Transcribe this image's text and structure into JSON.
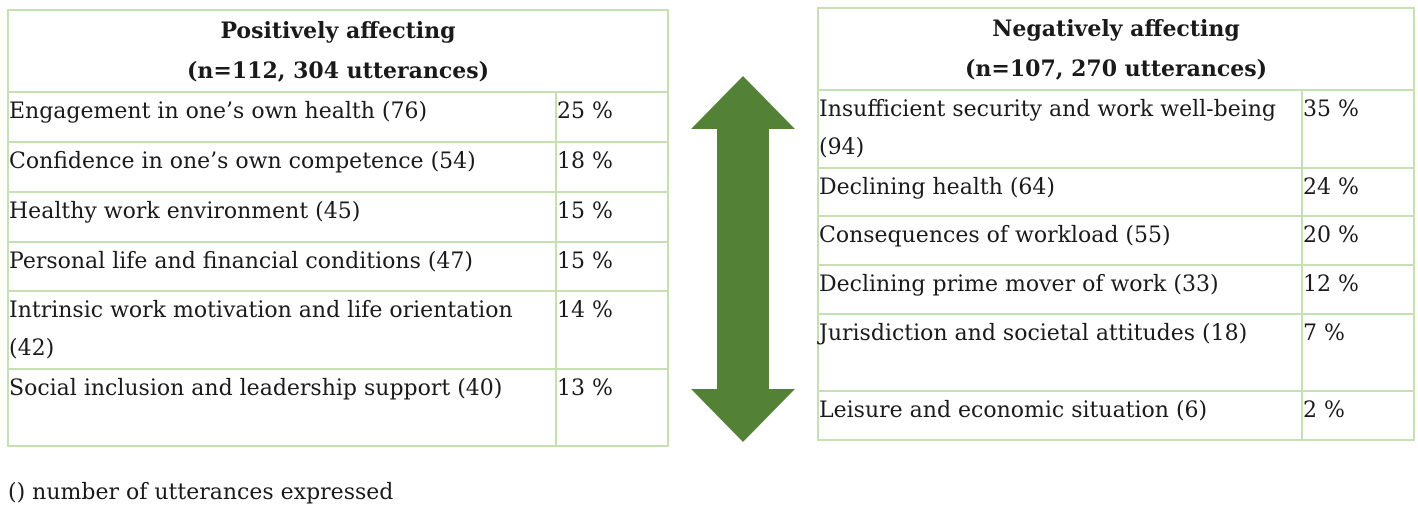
{
  "positive": {
    "title": "Positively affecting",
    "subtitle": "(n=112, 304 utterances)",
    "rows": [
      {
        "label": "Engagement in one’s own health (76)",
        "percent": "25 %"
      },
      {
        "label": "Confidence in one’s own competence (54)",
        "percent": "18 %"
      },
      {
        "label": "Healthy work environment (45)",
        "percent": "15 %"
      },
      {
        "label": "Personal life and financial conditions (47)",
        "percent": "15 %"
      },
      {
        "label": "Intrinsic work motivation and life orientation (42)",
        "percent": "14 %"
      },
      {
        "label": "Social inclusion and leadership support (40)",
        "percent": "13 %"
      }
    ]
  },
  "negative": {
    "title": "Negatively affecting",
    "subtitle": "(n=107, 270 utterances)",
    "rows": [
      {
        "label": "Insufficient security and work well-being (94)",
        "percent": "35 %"
      },
      {
        "label": "Declining health (64)",
        "percent": "24 %"
      },
      {
        "label": "Consequences of workload (55)",
        "percent": "20 %"
      },
      {
        "label": "Declining prime mover of work (33)",
        "percent": "12 %"
      },
      {
        "label": "Jurisdiction and societal attitudes (18)",
        "percent": "7 %"
      },
      {
        "label": "Leisure and economic situation (6)",
        "percent": "2 %"
      }
    ]
  },
  "arrow": {
    "color": "#538135",
    "icon": "double-headed-vertical-arrow"
  },
  "footnote": "() number of utterances expressed"
}
